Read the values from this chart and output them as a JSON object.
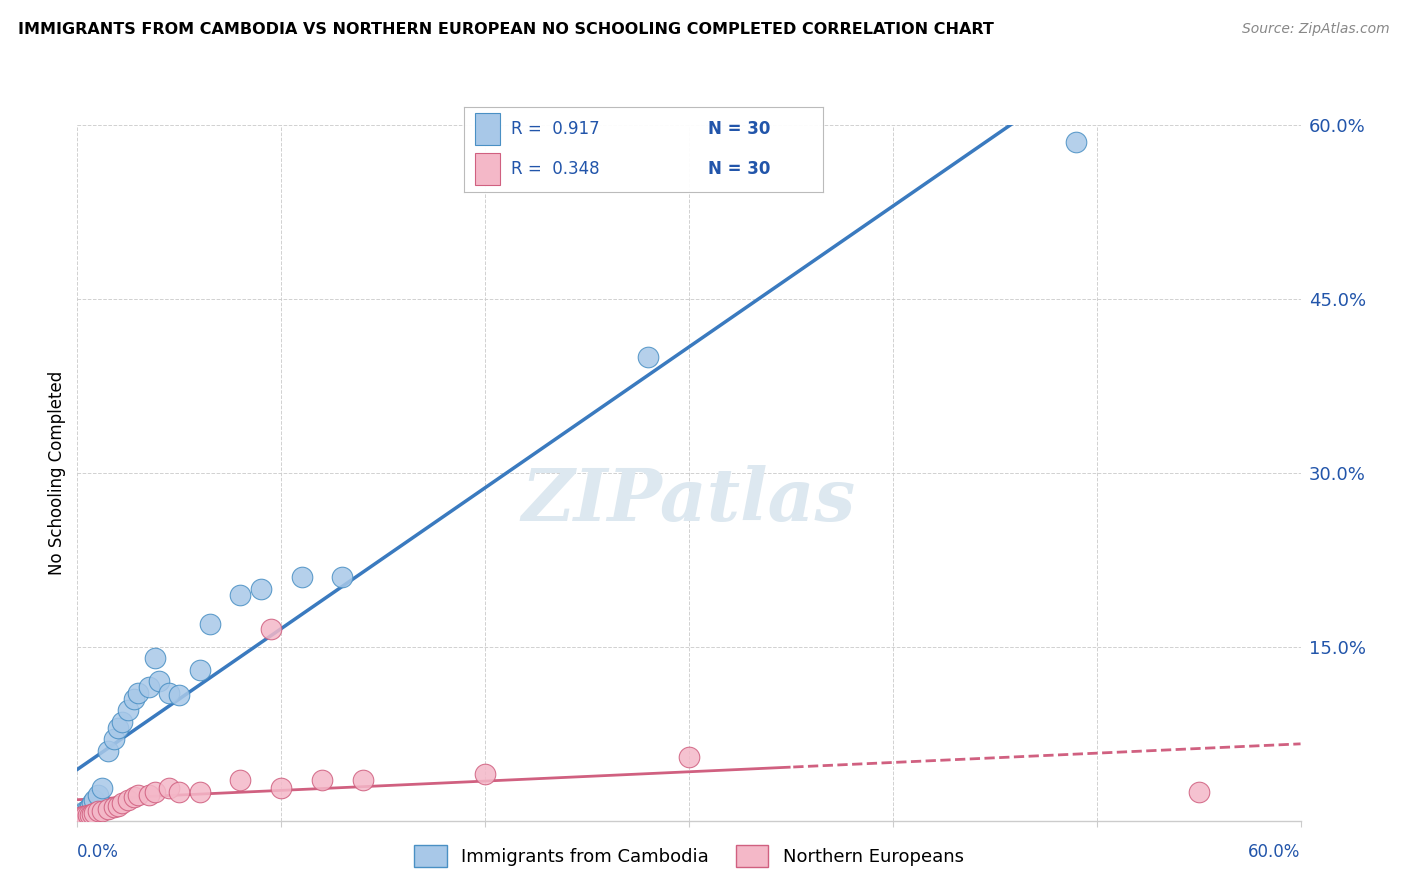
{
  "title": "IMMIGRANTS FROM CAMBODIA VS NORTHERN EUROPEAN NO SCHOOLING COMPLETED CORRELATION CHART",
  "source": "Source: ZipAtlas.com",
  "ylabel": "No Schooling Completed",
  "xlim": [
    0.0,
    0.6
  ],
  "ylim": [
    0.0,
    0.6
  ],
  "legend_r1": "R =  0.917",
  "legend_n1": "N = 30",
  "legend_r2": "R =  0.348",
  "legend_n2": "N = 30",
  "legend_label1": "Immigrants from Cambodia",
  "legend_label2": "Northern Europeans",
  "color_blue_fill": "#a8c8e8",
  "color_blue_edge": "#4a90c4",
  "color_pink_fill": "#f4b8c8",
  "color_pink_edge": "#d06080",
  "color_blue_line": "#3a7abf",
  "color_pink_line": "#d06080",
  "color_blue_text": "#2255aa",
  "color_grid": "#cccccc",
  "watermark_color": "#dde8f0",
  "cambodia_x": [
    0.001,
    0.002,
    0.003,
    0.004,
    0.005,
    0.006,
    0.007,
    0.008,
    0.01,
    0.012,
    0.015,
    0.018,
    0.02,
    0.022,
    0.025,
    0.028,
    0.03,
    0.035,
    0.038,
    0.04,
    0.045,
    0.05,
    0.06,
    0.065,
    0.08,
    0.09,
    0.11,
    0.13,
    0.28,
    0.49
  ],
  "cambodia_y": [
    0.003,
    0.005,
    0.006,
    0.008,
    0.01,
    0.012,
    0.015,
    0.018,
    0.022,
    0.028,
    0.06,
    0.07,
    0.08,
    0.085,
    0.095,
    0.105,
    0.11,
    0.115,
    0.14,
    0.12,
    0.11,
    0.108,
    0.13,
    0.17,
    0.195,
    0.2,
    0.21,
    0.21,
    0.4,
    0.585
  ],
  "northern_x": [
    0.001,
    0.002,
    0.003,
    0.004,
    0.005,
    0.006,
    0.007,
    0.008,
    0.01,
    0.012,
    0.015,
    0.018,
    0.02,
    0.022,
    0.025,
    0.028,
    0.03,
    0.035,
    0.038,
    0.045,
    0.05,
    0.06,
    0.08,
    0.095,
    0.1,
    0.12,
    0.14,
    0.2,
    0.3,
    0.55
  ],
  "northern_y": [
    0.002,
    0.003,
    0.004,
    0.004,
    0.005,
    0.005,
    0.006,
    0.007,
    0.008,
    0.008,
    0.01,
    0.012,
    0.013,
    0.015,
    0.018,
    0.02,
    0.022,
    0.022,
    0.025,
    0.028,
    0.025,
    0.025,
    0.035,
    0.165,
    0.028,
    0.035,
    0.035,
    0.04,
    0.055,
    0.025
  ]
}
